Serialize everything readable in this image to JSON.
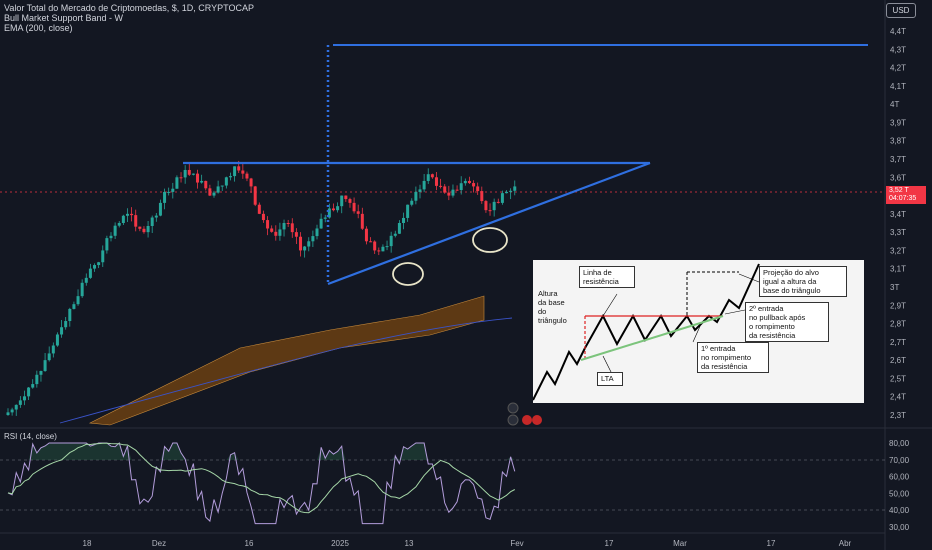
{
  "header": {
    "title": "Valor Total do Mercado de Criptomoedas, $, 1D, CRYPTOCAP",
    "indicator1": "Bull Market Support Band - W",
    "indicator2": "EMA (200, close)"
  },
  "currency": "USD",
  "price_tag": {
    "value": "3,52 T",
    "countdown": "04:07:35"
  },
  "rsi_label": "RSI (14, close)",
  "price_ticks": [
    "4,4T",
    "4,3T",
    "4,2T",
    "4,1T",
    "4T",
    "3,9T",
    "3,8T",
    "3,7T",
    "3,6T",
    "3,5T",
    "3,4T",
    "3,3T",
    "3,2T",
    "3,1T",
    "3T",
    "2,9T",
    "2,8T",
    "2,7T",
    "2,6T",
    "2,5T",
    "2,4T",
    "2,3T"
  ],
  "rsi_ticks": [
    "80,00",
    "70,00",
    "60,00",
    "50,00",
    "40,00",
    "30,00"
  ],
  "date_ticks": [
    "18",
    "Dez",
    "16",
    "2025",
    "13",
    "Fev",
    "17",
    "Mar",
    "17",
    "Abr"
  ],
  "colors": {
    "background": "#131722",
    "up": "#26a69a",
    "down": "#f23645",
    "pattern": "#2962ff",
    "rsi": "#b39ddb",
    "rsi_ma": "#a5d6a7",
    "band": "#8b5a2b"
  },
  "inset": {
    "labels": {
      "resistance": [
        "Linha de",
        "resistência"
      ],
      "projection": [
        "Projeção do alvo",
        "igual a altura da",
        "base do triângulo"
      ],
      "height": [
        "Altura",
        "da base",
        "do triângulo"
      ],
      "entry2": [
        "2º entrada",
        "no pullback após",
        "o rompimento",
        "da resistência"
      ],
      "entry1": [
        "1º entrada",
        "no rompimento",
        "da resistência"
      ],
      "lta": [
        "LTA"
      ]
    }
  },
  "chart_data": {
    "type": "candlestick",
    "unit": "T USD",
    "ylim": [
      2.3,
      4.4
    ],
    "grid": false,
    "annotations": [
      "ascending triangle: resistance ≈ 3,7T, rising support trendline",
      "target projection ≈ 4,33T"
    ],
    "approx_close_series": [
      2.33,
      2.38,
      2.45,
      2.52,
      2.6,
      2.68,
      2.78,
      2.88,
      2.95,
      3.05,
      3.12,
      3.2,
      3.28,
      3.35,
      3.4,
      3.33,
      3.3,
      3.38,
      3.46,
      3.52,
      3.6,
      3.64,
      3.62,
      3.58,
      3.5,
      3.55,
      3.6,
      3.66,
      3.62,
      3.55,
      3.4,
      3.32,
      3.28,
      3.35,
      3.3,
      3.2,
      3.25,
      3.32,
      3.38,
      3.42,
      3.5,
      3.46,
      3.4,
      3.25,
      3.2,
      3.22,
      3.28,
      3.35,
      3.45,
      3.52,
      3.58,
      3.6,
      3.55,
      3.5,
      3.53,
      3.58,
      3.55,
      3.47,
      3.42,
      3.46,
      3.52,
      3.55
    ]
  }
}
